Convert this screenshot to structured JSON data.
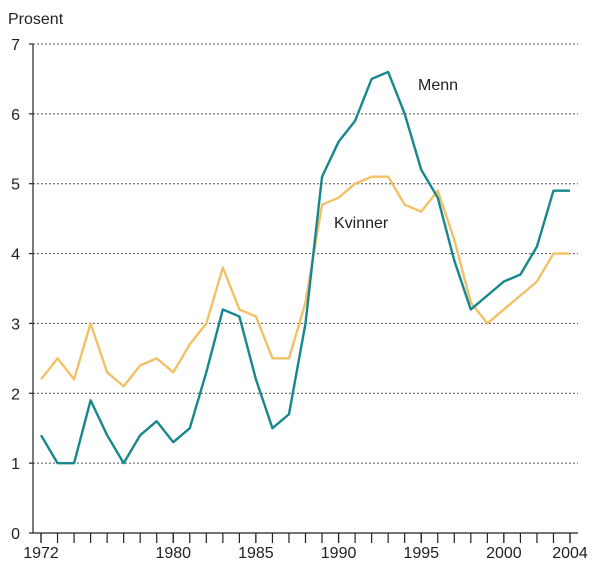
{
  "chart_data": {
    "type": "line",
    "y_label": "Prosent",
    "x": [
      1972,
      1973,
      1974,
      1975,
      1976,
      1977,
      1978,
      1979,
      1980,
      1981,
      1982,
      1983,
      1984,
      1985,
      1986,
      1987,
      1988,
      1989,
      1990,
      1991,
      1992,
      1993,
      1994,
      1995,
      1996,
      1997,
      1998,
      1999,
      2000,
      2001,
      2002,
      2003,
      2004
    ],
    "series": [
      {
        "name": "Menn",
        "color": "#16878d",
        "values": [
          1.4,
          1.0,
          1.0,
          1.9,
          1.4,
          1.0,
          1.4,
          1.6,
          1.3,
          1.5,
          2.3,
          3.2,
          3.1,
          2.2,
          1.5,
          1.7,
          3.0,
          5.1,
          5.6,
          5.9,
          6.5,
          6.6,
          6.0,
          5.2,
          4.8,
          3.9,
          3.2,
          3.4,
          3.6,
          3.7,
          4.1,
          4.9,
          4.9
        ]
      },
      {
        "name": "Kvinner",
        "color": "#f2c166",
        "values": [
          2.2,
          2.5,
          2.2,
          3.0,
          2.3,
          2.1,
          2.4,
          2.5,
          2.3,
          2.7,
          3.0,
          3.8,
          3.2,
          3.1,
          2.5,
          2.5,
          3.3,
          4.7,
          4.8,
          5.0,
          5.1,
          5.1,
          4.7,
          4.6,
          4.9,
          4.2,
          3.3,
          3.0,
          3.2,
          3.4,
          3.6,
          4.0,
          4.0
        ]
      }
    ],
    "xlim": [
      1972,
      2004
    ],
    "xticks": [
      1972,
      1980,
      1985,
      1990,
      1995,
      2000,
      2004
    ],
    "ylim": [
      0,
      7
    ],
    "yticks": [
      0,
      1,
      2,
      3,
      4,
      5,
      6,
      7
    ],
    "grid": true
  }
}
